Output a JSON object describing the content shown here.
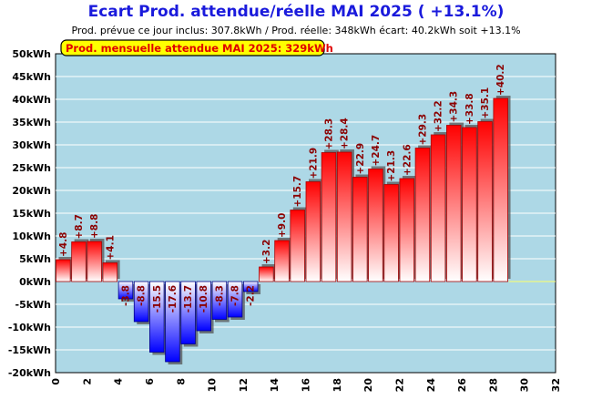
{
  "title": "Ecart Prod. attendue/réelle MAI 2025 ( +13.1%)",
  "subtitle": "Prod. prévue ce jour inclus: 307.8kWh / Prod. réelle: 348kWh écart: 40.2kWh soit +13.1%",
  "badge": "Prod. mensuelle attendue MAI 2025: 329kWh",
  "colors": {
    "plot_background": "#add8e6",
    "positive_bar": "#ff0000",
    "negative_bar": "#0000ff",
    "zero_line": "#ffff66",
    "title": "#1a1adc",
    "data_label": "#8b0000"
  },
  "chart_data": {
    "type": "bar",
    "x": [
      0,
      1,
      2,
      3,
      4,
      5,
      6,
      7,
      8,
      9,
      10,
      11,
      12,
      13,
      14,
      15,
      16,
      17,
      18,
      19,
      20,
      21,
      22,
      23,
      24,
      25,
      26,
      27,
      28
    ],
    "values": [
      4.8,
      8.7,
      8.8,
      4.1,
      -3.8,
      -8.8,
      -15.5,
      -17.6,
      -13.7,
      -10.8,
      -8.3,
      -7.8,
      -2.2,
      3.2,
      9.0,
      15.7,
      21.9,
      28.3,
      28.4,
      22.9,
      24.7,
      21.3,
      22.6,
      29.3,
      32.2,
      34.3,
      33.8,
      35.1,
      40.2
    ],
    "labels": [
      "+4.8",
      "+8.7",
      "+8.8",
      "+4.1",
      "-3.8",
      "-8.8",
      "-15.5",
      "-17.6",
      "-13.7",
      "-10.8",
      "-8.3",
      "-7.8",
      "-2.2",
      "+3.2",
      "+9.0",
      "+15.7",
      "+21.9",
      "+28.3",
      "+28.4",
      "+22.9",
      "+24.7",
      "+21.3",
      "+22.6",
      "+29.3",
      "+32.2",
      "+34.3",
      "+33.8",
      "+35.1",
      "+40.2"
    ],
    "unit": "kWh",
    "xlim": [
      0,
      32
    ],
    "ylim": [
      -20,
      50
    ],
    "x_ticks": [
      "0",
      "2",
      "4",
      "6",
      "8",
      "10",
      "12",
      "14",
      "16",
      "18",
      "20",
      "22",
      "24",
      "26",
      "28",
      "30",
      "32"
    ],
    "y_ticks": [
      "50kWh",
      "45kWh",
      "40kWh",
      "35kWh",
      "30kWh",
      "25kWh",
      "20kWh",
      "15kWh",
      "10kWh",
      "5kWh",
      "0kWh",
      "-5kWh",
      "-10kWh",
      "-15kWh",
      "-20kWh"
    ],
    "grid": true
  }
}
